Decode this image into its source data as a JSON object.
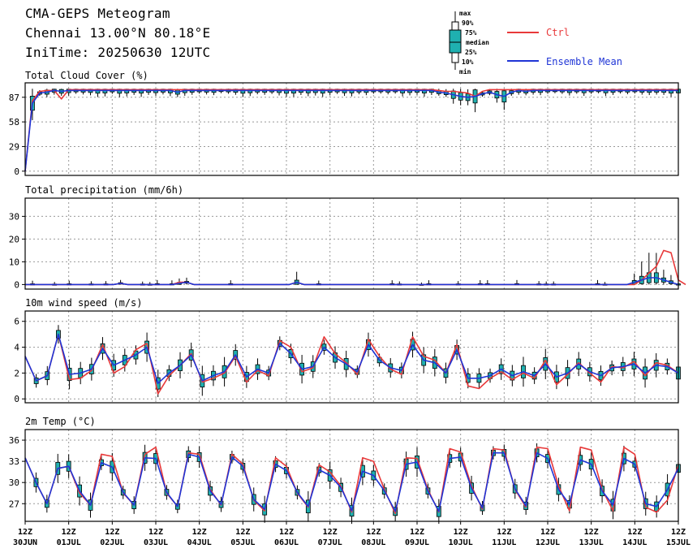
{
  "header": {
    "title": "CMA-GEPS Meteogram",
    "location": "Chennai 13.00°N 80.18°E",
    "init_time": "IniTime: 20250630 12UTC"
  },
  "legend": {
    "box_labels": [
      "max",
      "90%",
      "75%",
      "median",
      "25%",
      "10%",
      "min"
    ],
    "ctrl_label": "Ctrl",
    "mean_label": "Ensemble Mean",
    "ctrl_color": "#e8393a",
    "mean_color": "#1f35d6",
    "box_fill": "#1fb0b0"
  },
  "chart_data": [
    {
      "type": "line",
      "title": "Total Cloud Cover (%)",
      "ylim": [
        -5,
        104
      ],
      "yticks": [
        0,
        29,
        58,
        87
      ],
      "grid": true,
      "series": [
        {
          "name": "Ctrl",
          "values": [
            0,
            83,
            94,
            95,
            95,
            85,
            96,
            96,
            96,
            96,
            96,
            96,
            96,
            96,
            96,
            96,
            96,
            96,
            96,
            96,
            96,
            96,
            96,
            96,
            96,
            96,
            96,
            96,
            96,
            96,
            96,
            96,
            96,
            96,
            96,
            96,
            96,
            96,
            96,
            96,
            96,
            96,
            96,
            96,
            96,
            96,
            96,
            96,
            96,
            96,
            96,
            96,
            96,
            96,
            96,
            96,
            96,
            95,
            94,
            94,
            93,
            92,
            88,
            94,
            96,
            96,
            96,
            96,
            96,
            96,
            96,
            96,
            96,
            96,
            96,
            96,
            96,
            96,
            96,
            96,
            96,
            96,
            96,
            96,
            96,
            96,
            96,
            96,
            96,
            96,
            96
          ]
        },
        {
          "name": "Ensemble Mean",
          "values": [
            0,
            80,
            92,
            93,
            95,
            94,
            95,
            95,
            95,
            95,
            95,
            95,
            95,
            95,
            95,
            95,
            95,
            95,
            95,
            95,
            95,
            93,
            95,
            95,
            95,
            95,
            95,
            95,
            95,
            95,
            95,
            95,
            95,
            95,
            95,
            95,
            95,
            95,
            95,
            95,
            95,
            95,
            95,
            95,
            95,
            95,
            95,
            95,
            95,
            95,
            95,
            95,
            95,
            95,
            95,
            95,
            95,
            93,
            92,
            90,
            88,
            87,
            88,
            91,
            93,
            90,
            88,
            93,
            95,
            94,
            95,
            95,
            95,
            95,
            95,
            95,
            95,
            95,
            95,
            95,
            95,
            95,
            95,
            95,
            95,
            95,
            95,
            95,
            95,
            95,
            95
          ]
        }
      ]
    },
    {
      "type": "line",
      "title": "Total precipitation (mm/6h)",
      "ylim": [
        -2,
        38
      ],
      "yticks": [
        0,
        10,
        20,
        30
      ],
      "grid": true,
      "series": [
        {
          "name": "Ctrl",
          "values": [
            0,
            0,
            0,
            0,
            0,
            0,
            0,
            0,
            0,
            0,
            0,
            0,
            0,
            0.5,
            0,
            0,
            0,
            0,
            0,
            0,
            0,
            1,
            1,
            0,
            0,
            0,
            0,
            0,
            0,
            0,
            0,
            0,
            0,
            0,
            0,
            0,
            0,
            1,
            0,
            0,
            0,
            0,
            0,
            0,
            0,
            0,
            0,
            0,
            0,
            0,
            0,
            0,
            0,
            0,
            0,
            0,
            0,
            0,
            0,
            0,
            0,
            0,
            0,
            0,
            0,
            0,
            0,
            0,
            0,
            0,
            0,
            0,
            0,
            0,
            0,
            0,
            0,
            0,
            0,
            0,
            0,
            0,
            0,
            0,
            2,
            5,
            8,
            15,
            14,
            2,
            0
          ]
        },
        {
          "name": "Ensemble Mean",
          "values": [
            0,
            0,
            0,
            0,
            0,
            0,
            0,
            0,
            0,
            0,
            0,
            0,
            0,
            0.5,
            0,
            0,
            0,
            0,
            0,
            0,
            0,
            0.5,
            1,
            0,
            0,
            0,
            0,
            0,
            0,
            0,
            0,
            0,
            0,
            0,
            0,
            0,
            0,
            1,
            0,
            0,
            0,
            0,
            0,
            0,
            0,
            0,
            0,
            0,
            0,
            0,
            0,
            0,
            0,
            0,
            0,
            0,
            0,
            0,
            0,
            0,
            0,
            0,
            0,
            0,
            0,
            0,
            0,
            0,
            0,
            0,
            0,
            0,
            0,
            0,
            0,
            0,
            0,
            0,
            0,
            0,
            0,
            0,
            0,
            1,
            2,
            3,
            3,
            2,
            1,
            0
          ]
        }
      ]
    },
    {
      "type": "line",
      "title": "10m wind speed (m/s)",
      "ylim": [
        -0.3,
        6.8
      ],
      "yticks": [
        0,
        2,
        4,
        6
      ],
      "grid": true,
      "series": [
        {
          "name": "Ctrl",
          "values": [
            3.3,
            1.4,
            1.8,
            5.0,
            1.5,
            1.6,
            2.2,
            4.2,
            2.0,
            2.5,
            3.8,
            4.3,
            0.4,
            1.8,
            2.6,
            3.5,
            1.3,
            1.6,
            2.0,
            3.3,
            1.3,
            2.2,
            1.8,
            4.5,
            4.0,
            2.1,
            2.4,
            4.8,
            3.5,
            2.8,
            1.9,
            4.6,
            3.3,
            2.3,
            1.9,
            4.8,
            3.3,
            3.0,
            2.0,
            4.2,
            1.0,
            0.8,
            1.6,
            2.1,
            1.5,
            2.0,
            1.6,
            3.0,
            1.1,
            1.9,
            2.8,
            2.0,
            1.3,
            2.5,
            2.4,
            2.9,
            1.8,
            2.8,
            2.6,
            2.0
          ]
        },
        {
          "name": "Ensemble Mean",
          "values": [
            3.3,
            1.4,
            1.8,
            5.0,
            1.9,
            2.0,
            2.3,
            3.9,
            2.6,
            3.0,
            3.4,
            4.0,
            1.2,
            2.0,
            2.6,
            3.4,
            1.4,
            1.8,
            2.1,
            3.4,
            1.7,
            2.3,
            2.0,
            4.3,
            3.5,
            2.3,
            2.5,
            4.0,
            3.2,
            2.7,
            2.1,
            4.2,
            3.0,
            2.4,
            2.2,
            4.2,
            3.0,
            2.8,
            2.0,
            3.8,
            1.6,
            1.6,
            1.8,
            2.3,
            1.8,
            2.1,
            1.8,
            2.7,
            1.7,
            2.0,
            2.7,
            2.1,
            1.8,
            2.4,
            2.5,
            2.7,
            2.0,
            2.6,
            2.5,
            2.0
          ]
        }
      ]
    },
    {
      "type": "line",
      "title": "2m Temp (°C)",
      "ylim": [
        24.5,
        37.5
      ],
      "yticks": [
        27,
        30,
        33,
        36
      ],
      "grid": true,
      "series": [
        {
          "name": "Ctrl",
          "values": [
            33.5,
            30.0,
            27.0,
            32.0,
            32.3,
            28.5,
            26.8,
            34.0,
            33.7,
            28.5,
            26.8,
            34.0,
            35.0,
            28.5,
            26.6,
            34.2,
            34.0,
            29.0,
            26.8,
            34.0,
            32.6,
            27.5,
            26.0,
            33.5,
            32.3,
            28.5,
            26.5,
            32.5,
            31.5,
            29.5,
            25.8,
            33.5,
            33.0,
            29.0,
            25.6,
            33.5,
            33.4,
            29.0,
            25.8,
            34.8,
            34.3,
            29.5,
            26.2,
            34.8,
            34.6,
            29.0,
            26.5,
            35.0,
            34.8,
            29.5,
            26.0,
            35.0,
            34.6,
            29.0,
            26.0,
            35.0,
            34.0,
            26.5,
            25.8,
            27.5,
            32.5
          ]
        },
        {
          "name": "Ensemble Mean",
          "values": [
            33.5,
            30.0,
            27.0,
            32.0,
            32.3,
            28.8,
            26.8,
            32.8,
            32.2,
            28.6,
            26.8,
            33.5,
            33.4,
            28.6,
            26.6,
            34.0,
            33.6,
            28.8,
            26.9,
            33.6,
            32.3,
            27.6,
            26.2,
            32.6,
            31.7,
            28.6,
            26.6,
            31.8,
            31.0,
            29.3,
            26.0,
            31.6,
            31.0,
            28.8,
            25.9,
            32.6,
            32.9,
            28.8,
            25.9,
            33.4,
            33.6,
            29.2,
            26.4,
            34.2,
            34.2,
            29.1,
            26.7,
            34.2,
            33.4,
            29.0,
            26.9,
            33.2,
            32.6,
            28.8,
            26.8,
            33.4,
            32.6,
            27.0,
            26.6,
            29.0,
            32.0
          ]
        }
      ]
    }
  ],
  "x_axis": {
    "tick_top": "12Z",
    "tick_dates": [
      "30JUN",
      "01JUL",
      "02JUL",
      "03JUL",
      "04JUL",
      "05JUL",
      "06JUL",
      "07JUL",
      "08JUL",
      "09JUL",
      "10JUL",
      "11JUL",
      "12JUL",
      "13JUL",
      "14JUL",
      "15JUL"
    ]
  }
}
